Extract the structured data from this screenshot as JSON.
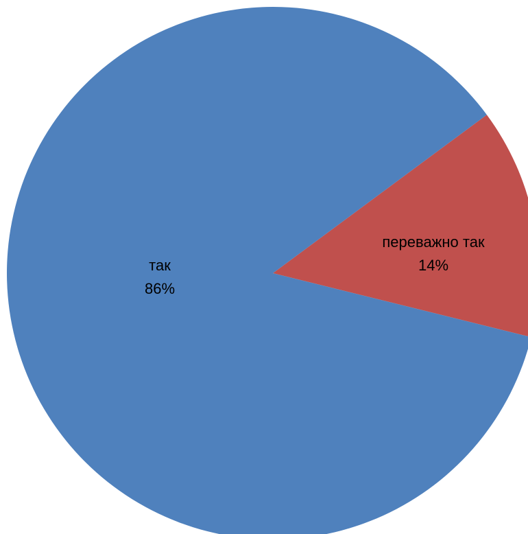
{
  "chart_data": {
    "type": "pie",
    "title": "",
    "slices": [
      {
        "label": "так",
        "value": 86,
        "value_label": "86%",
        "color": "#4F81BD"
      },
      {
        "label": "переважно так",
        "value": 14,
        "value_label": "14%",
        "color": "#C0504D"
      }
    ],
    "legend": "none",
    "data_labels": "inside"
  }
}
